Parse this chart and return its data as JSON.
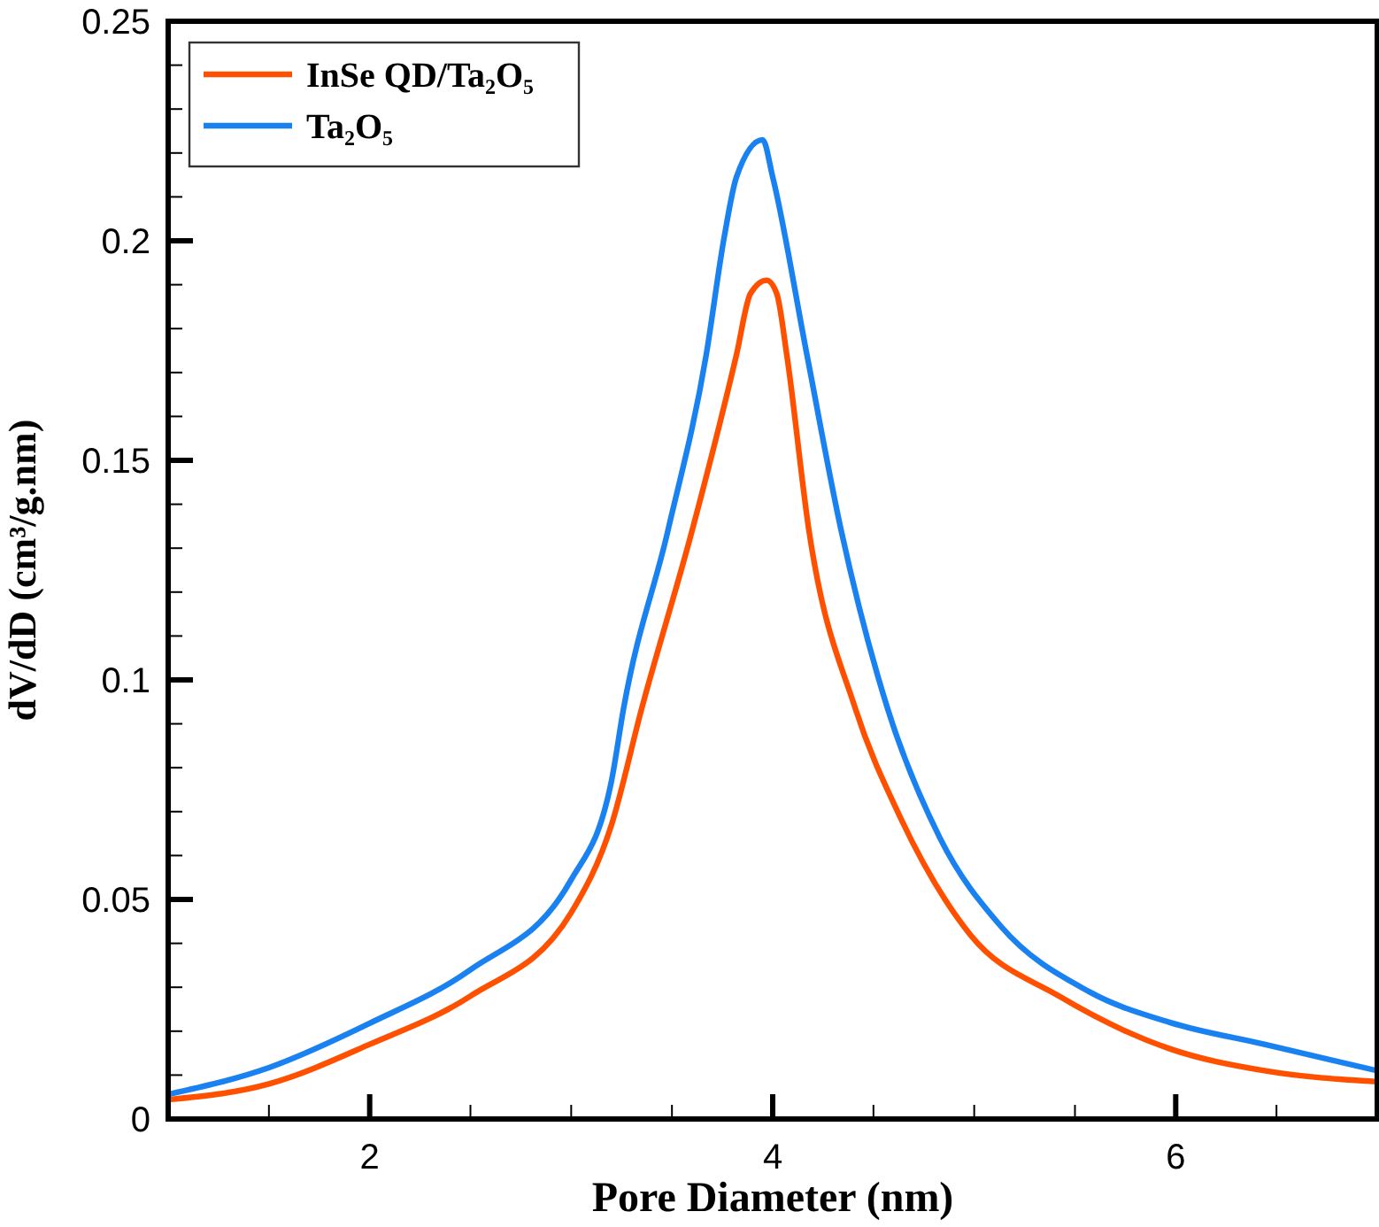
{
  "chart_data": {
    "type": "line",
    "xlabel": "Pore Diameter (nm)",
    "ylabel": "dV/dD (cm³/g.nm)",
    "xlim": [
      1,
      7
    ],
    "ylim": [
      0,
      0.25
    ],
    "xticks": [
      {
        "value": 1.5,
        "label": null
      },
      2,
      {
        "value": 2.5,
        "label": null
      },
      {
        "value": 3,
        "label": null
      },
      {
        "value": 3.5,
        "label": null
      },
      4,
      {
        "value": 4.5,
        "label": null
      },
      {
        "value": 5,
        "label": null
      },
      {
        "value": 5.5,
        "label": null
      },
      6,
      {
        "value": 6.5,
        "label": null
      }
    ],
    "yticks": [
      0,
      {
        "value": 0.01,
        "label": null
      },
      {
        "value": 0.02,
        "label": null
      },
      {
        "value": 0.03,
        "label": null
      },
      {
        "value": 0.04,
        "label": null
      },
      0.05,
      {
        "value": 0.06,
        "label": null
      },
      {
        "value": 0.07,
        "label": null
      },
      {
        "value": 0.08,
        "label": null
      },
      {
        "value": 0.09,
        "label": null
      },
      0.1,
      {
        "value": 0.11,
        "label": null
      },
      {
        "value": 0.12,
        "label": null
      },
      {
        "value": 0.13,
        "label": null
      },
      {
        "value": 0.14,
        "label": null
      },
      0.15,
      {
        "value": 0.16,
        "label": null
      },
      {
        "value": 0.17,
        "label": null
      },
      {
        "value": 0.18,
        "label": null
      },
      {
        "value": 0.19,
        "label": null
      },
      0.2,
      {
        "value": 0.21,
        "label": null
      },
      {
        "value": 0.22,
        "label": null
      },
      {
        "value": 0.23,
        "label": null
      },
      {
        "value": 0.24,
        "label": null
      },
      0.25
    ],
    "legend": "top left",
    "grid": false,
    "marker": "none",
    "line_style": "solid",
    "series": [
      {
        "name": "InSe QD/Ta₂O₅",
        "color": "#ff5000",
        "x": [
          1,
          1.5,
          2,
          2.5,
          3,
          3.2,
          3.35,
          3.6,
          3.82,
          3.89,
          3.97,
          4.02,
          4.07,
          4.18,
          4.41,
          4.63,
          4.98,
          5.42,
          5.97,
          6.44,
          7
        ],
        "values": [
          0.0044,
          0.008,
          0.017,
          0.028,
          0.047,
          0.067,
          0.0935,
          0.134,
          0.174,
          0.188,
          0.191,
          0.188,
          0.174,
          0.134,
          0.0935,
          0.069,
          0.042,
          0.028,
          0.016,
          0.011,
          0.0085
        ]
      },
      {
        "name": "Ta₂O₅",
        "color": "#1a82f0",
        "x": [
          1,
          1.5,
          2,
          2.5,
          3,
          3.2,
          3.26,
          3.48,
          3.67,
          3.76,
          3.82,
          3.95,
          4.0,
          4.17,
          4.34,
          4.57,
          4.83,
          5.13,
          5.57,
          5.97,
          6.44,
          7
        ],
        "values": [
          0.0056,
          0.0117,
          0.0218,
          0.034,
          0.0545,
          0.077,
          0.0935,
          0.134,
          0.174,
          0.201,
          0.2145,
          0.223,
          0.2145,
          0.174,
          0.134,
          0.0935,
          0.064,
          0.044,
          0.029,
          0.022,
          0.017,
          0.011
        ]
      }
    ]
  }
}
